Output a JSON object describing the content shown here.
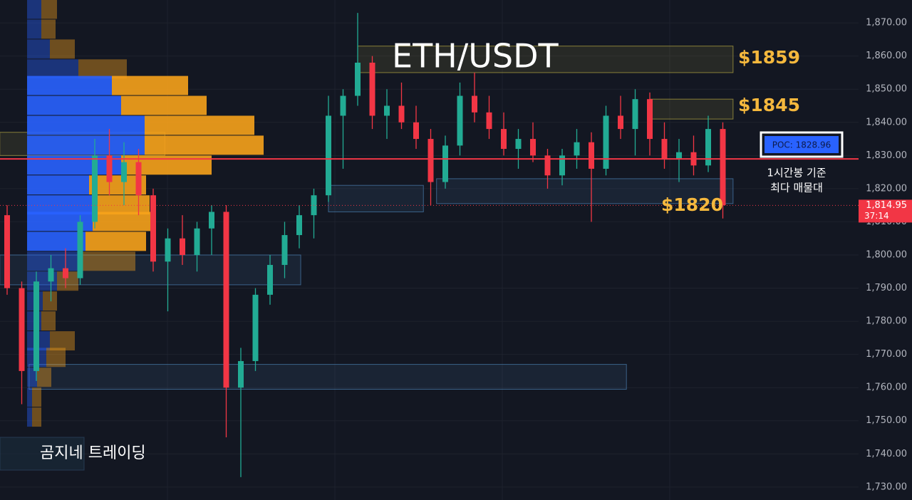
{
  "chart_data": {
    "type": "candlestick",
    "title": "ETH/USDT",
    "ylim": [
      1726.1,
      1876.9
    ],
    "yticks": [
      {
        "value": 1730,
        "label": "1,730.00"
      },
      {
        "value": 1740,
        "label": "1,740.00"
      },
      {
        "value": 1750,
        "label": "1,750.00"
      },
      {
        "value": 1760,
        "label": "1,760.00"
      },
      {
        "value": 1770,
        "label": "1,770.00"
      },
      {
        "value": 1780,
        "label": "1,780.00"
      },
      {
        "value": 1790,
        "label": "1,790.00"
      },
      {
        "value": 1800,
        "label": "1,800.00"
      },
      {
        "value": 1810,
        "label": "1,810.00"
      },
      {
        "value": 1820,
        "label": "1,820.00"
      },
      {
        "value": 1830,
        "label": "1,830.00"
      },
      {
        "value": 1840,
        "label": "1,840.00"
      },
      {
        "value": 1850,
        "label": "1,850.00"
      },
      {
        "value": 1860,
        "label": "1,860.00"
      },
      {
        "value": 1870,
        "label": "1,870.00"
      }
    ],
    "grid": true,
    "up_color": "#22ab94",
    "down_color": "#f23645",
    "open": [
      1812,
      1790,
      1765,
      1792,
      1796,
      1793,
      1810,
      1830,
      1822,
      1828,
      1818,
      1798,
      1805,
      1800,
      1808,
      1813,
      1760,
      1768,
      1788,
      1797,
      1806,
      1812,
      1818,
      1842,
      1848,
      1858,
      1842,
      1845,
      1840,
      1835,
      1822,
      1833,
      1848,
      1843,
      1838,
      1832,
      1835,
      1830,
      1824,
      1830,
      1834,
      1826,
      1842,
      1838,
      1847,
      1835,
      1829,
      1831,
      1827,
      1838
    ],
    "high": [
      1815,
      1792,
      1795,
      1800,
      1802,
      1812,
      1835,
      1838,
      1834,
      1832,
      1820,
      1808,
      1812,
      1810,
      1815,
      1815,
      1772,
      1790,
      1800,
      1810,
      1815,
      1820,
      1848,
      1850,
      1873,
      1860,
      1850,
      1852,
      1845,
      1838,
      1836,
      1852,
      1855,
      1848,
      1843,
      1838,
      1840,
      1832,
      1832,
      1838,
      1837,
      1845,
      1848,
      1850,
      1849,
      1840,
      1835,
      1836,
      1842,
      1840
    ],
    "low": [
      1788,
      1755,
      1762,
      1786,
      1790,
      1791,
      1808,
      1818,
      1815,
      1812,
      1795,
      1783,
      1797,
      1795,
      1800,
      1745,
      1733,
      1765,
      1785,
      1793,
      1802,
      1805,
      1816,
      1826,
      1845,
      1838,
      1835,
      1838,
      1832,
      1815,
      1820,
      1830,
      1840,
      1835,
      1830,
      1826,
      1828,
      1820,
      1821,
      1826,
      1810,
      1824,
      1835,
      1830,
      1830,
      1826,
      1822,
      1824,
      1825,
      1811
    ],
    "close": [
      1790,
      1765,
      1792,
      1796,
      1793,
      1810,
      1830,
      1822,
      1828,
      1818,
      1798,
      1805,
      1800,
      1808,
      1813,
      1760,
      1768,
      1788,
      1797,
      1806,
      1812,
      1818,
      1842,
      1848,
      1858,
      1842,
      1845,
      1840,
      1835,
      1822,
      1833,
      1848,
      1843,
      1838,
      1832,
      1835,
      1830,
      1824,
      1830,
      1834,
      1826,
      1842,
      1838,
      1847,
      1835,
      1829,
      1831,
      1827,
      1838,
      1815
    ],
    "volume_profile": {
      "levels": [
        1871,
        1865,
        1859,
        1853,
        1848,
        1842,
        1836,
        1830,
        1824,
        1818,
        1812,
        1807,
        1801,
        1795,
        1789,
        1783,
        1777,
        1771,
        1766,
        1760,
        1754,
        1748
      ],
      "buy": [
        20,
        20,
        32,
        72,
        119,
        132,
        165,
        165,
        132,
        87,
        92,
        92,
        82,
        74,
        42,
        22,
        20,
        32,
        27,
        14,
        7,
        7
      ],
      "sell": [
        22,
        20,
        35,
        68,
        107,
        120,
        154,
        167,
        127,
        80,
        80,
        83,
        85,
        78,
        30,
        20,
        20,
        35,
        27,
        20,
        13,
        13
      ],
      "buy_color": "#2962ff",
      "sell_color": "#f7a21b"
    },
    "zones": [
      {
        "low": 1855,
        "high": 1863,
        "from": 24,
        "to": 49.7,
        "color": "#b5a642"
      },
      {
        "low": 1841,
        "high": 1847,
        "from": 44,
        "to": 49.7,
        "color": "#b5a642"
      },
      {
        "low": 1815.5,
        "high": 1823,
        "from": 29.4,
        "to": 49.7,
        "color": "#4a7fb0"
      },
      {
        "low": 1759.5,
        "high": 1767,
        "from": 1.5,
        "to": 42.4,
        "color": "#4a7fb0"
      },
      {
        "low": 1791,
        "high": 1800,
        "from": -0.5,
        "to": 20.1,
        "color": "#4a7fb0"
      },
      {
        "low": 1813,
        "high": 1821,
        "from": 22,
        "to": 28.5,
        "color": "#4a7fb0"
      },
      {
        "low": 1830,
        "high": 1837,
        "from": -0.5,
        "to": 10.8,
        "color": "#b5a642"
      }
    ],
    "poc": {
      "value": 1828.96,
      "label": "POC: 1828.96",
      "color": "#f23645"
    },
    "current_price": {
      "value": 1814.95,
      "label": "1,814.95",
      "timer": "37:14"
    },
    "annotations": [
      "$1859",
      "$1845",
      "$1820"
    ],
    "poc_note": [
      "1시간봉 기준",
      "최다 매물대"
    ],
    "watermark": "곰지네 트레이딩"
  }
}
